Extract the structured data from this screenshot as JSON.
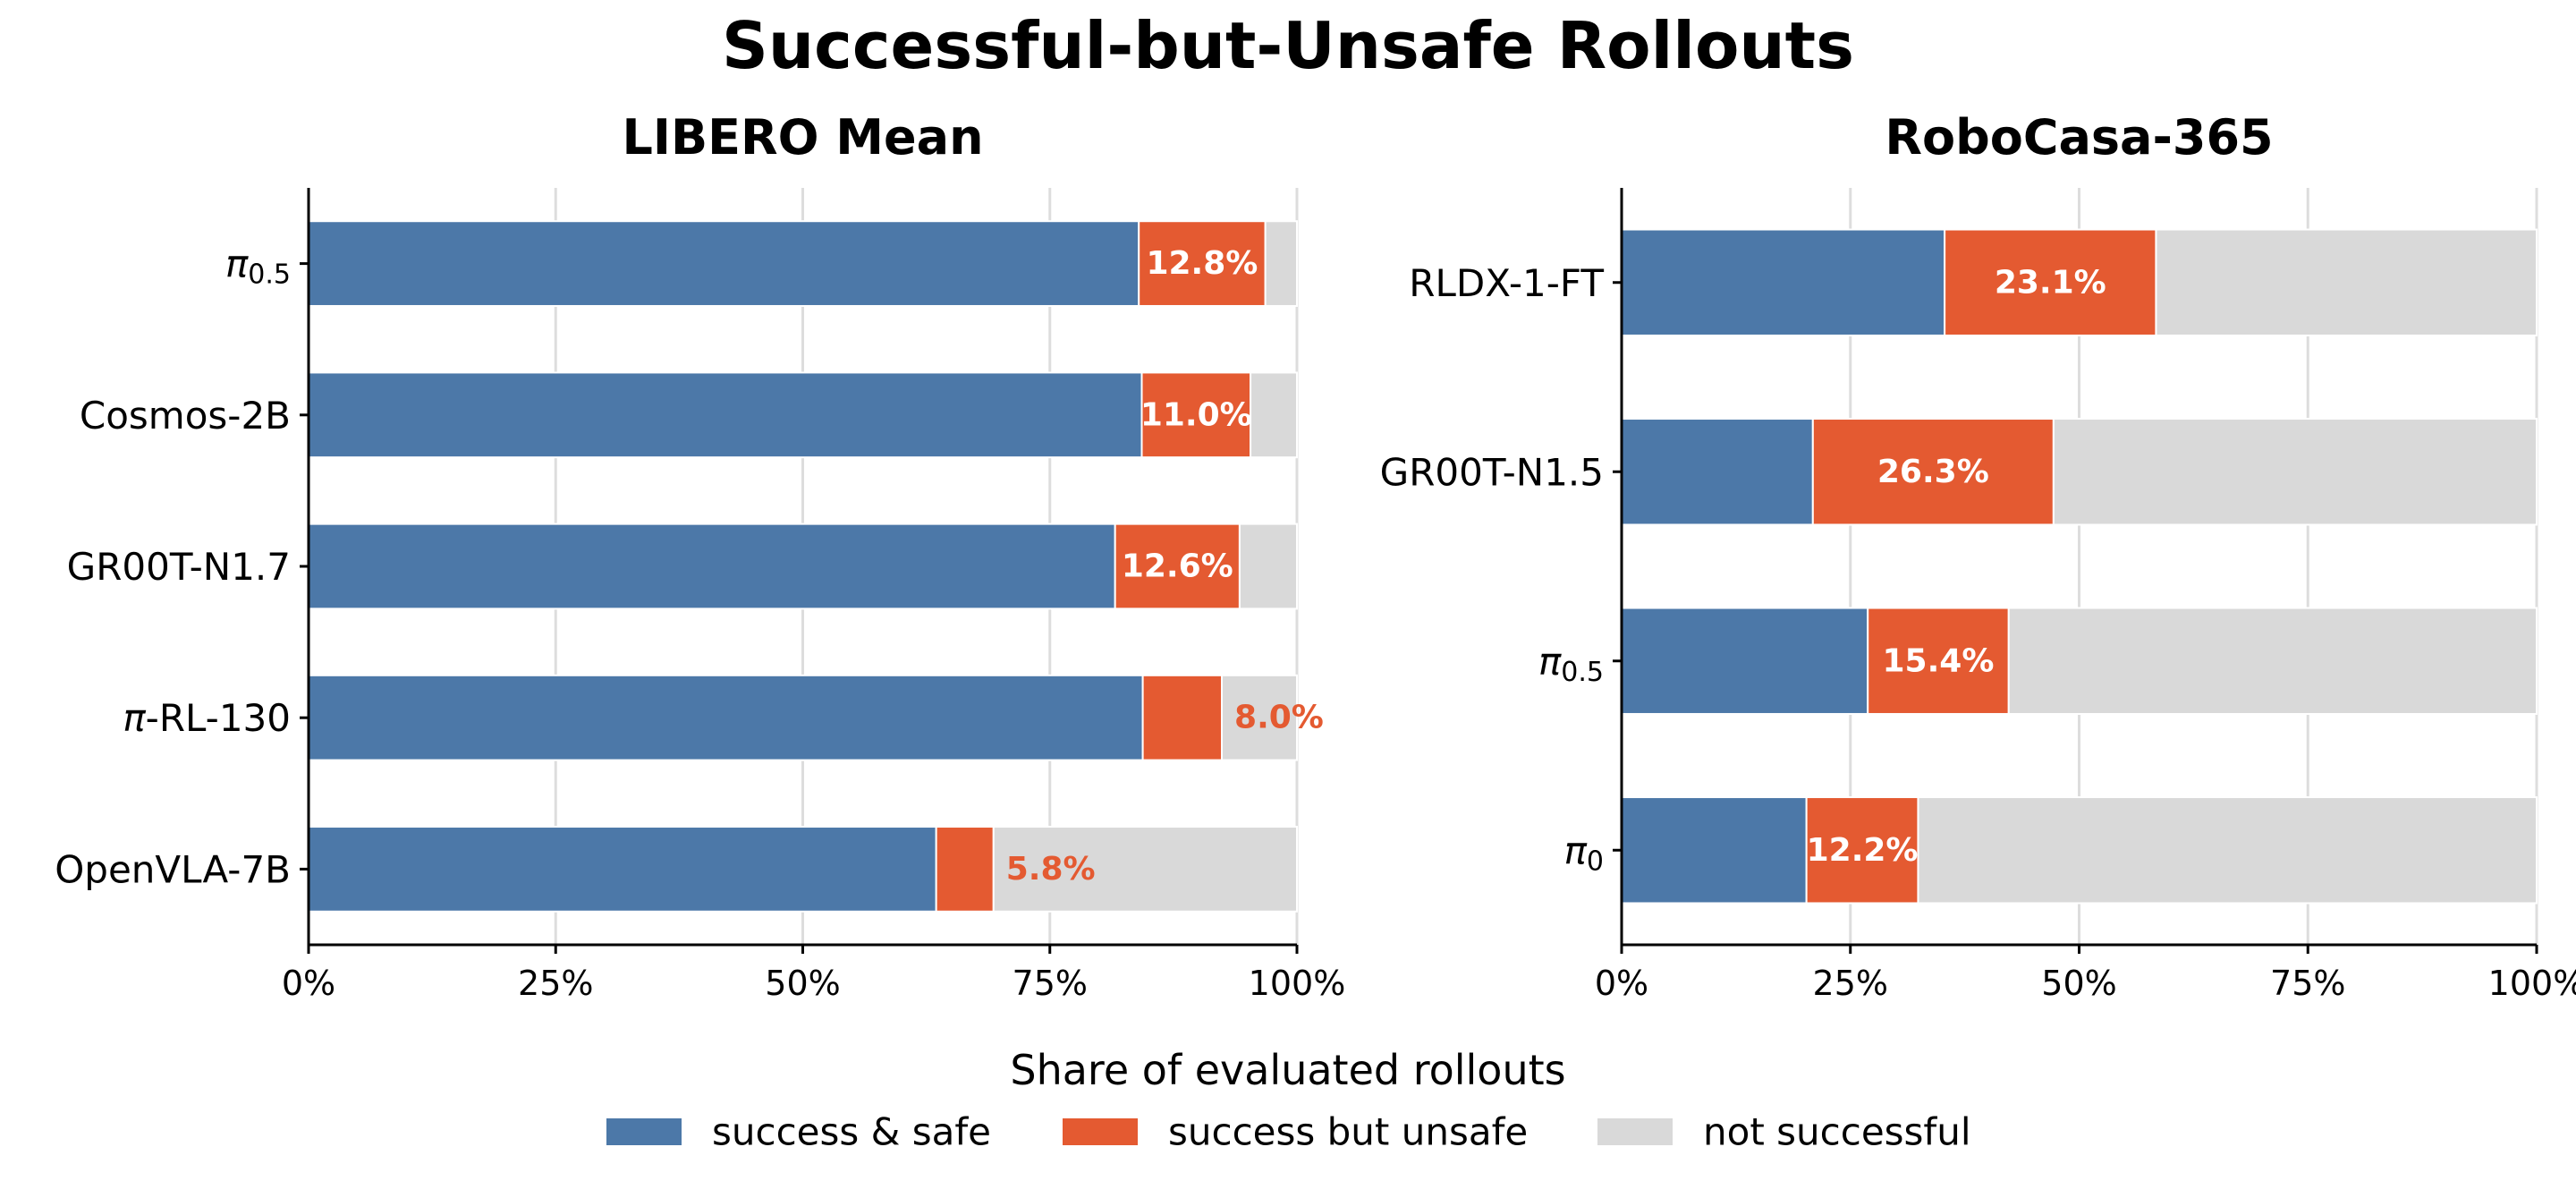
{
  "figure_title": "Successful-but-Unsafe Rollouts",
  "shared_xlabel": "Share of evaluated rollouts",
  "legend": [
    {
      "label": "success & safe",
      "color": "#4C78A8"
    },
    {
      "label": "success but unsafe",
      "color": "#E45A31"
    },
    {
      "label": "not successful",
      "color": "#D9D9D9"
    }
  ],
  "colors": {
    "safe": "#4C78A8",
    "unsafe": "#E45A31",
    "fail": "#D9D9D9",
    "label_white": "#FFFFFF",
    "label_outside": "#E45A31",
    "grid": "#DDDDDD"
  },
  "chart_data": [
    {
      "type": "bar",
      "orientation": "horizontal",
      "stacked": true,
      "title": "LIBERO Mean",
      "categories": [
        {
          "base": "π",
          "sub": "0.5"
        },
        {
          "base": "Cosmos-2B"
        },
        {
          "base": "GR00T-N1.7"
        },
        {
          "base": "π-RL-130"
        },
        {
          "base": "OpenVLA-7B"
        }
      ],
      "series": [
        {
          "name": "success & safe",
          "values": [
            84.0,
            84.3,
            81.6,
            84.4,
            63.5
          ]
        },
        {
          "name": "success but unsafe",
          "values": [
            12.8,
            11.0,
            12.6,
            8.0,
            5.8
          ]
        },
        {
          "name": "not successful",
          "values": [
            3.2,
            4.7,
            5.8,
            7.6,
            30.7
          ]
        }
      ],
      "data_labels": [
        "12.8%",
        "11.0%",
        "12.6%",
        "8.0%",
        "5.8%"
      ],
      "data_label_position": [
        "inside",
        "inside",
        "inside",
        "outside",
        "outside"
      ],
      "xlim": [
        0,
        100
      ],
      "xticks": [
        "0%",
        "25%",
        "50%",
        "75%",
        "100%"
      ],
      "grid": "x"
    },
    {
      "type": "bar",
      "orientation": "horizontal",
      "stacked": true,
      "title": "RoboCasa-365",
      "categories": [
        {
          "base": "RLDX-1-FT"
        },
        {
          "base": "GR00T-N1.5"
        },
        {
          "base": "π",
          "sub": "0.5"
        },
        {
          "base": "π",
          "sub": "0"
        }
      ],
      "series": [
        {
          "name": "success & safe",
          "values": [
            35.3,
            20.9,
            26.9,
            20.2
          ]
        },
        {
          "name": "success but unsafe",
          "values": [
            23.1,
            26.3,
            15.4,
            12.2
          ]
        },
        {
          "name": "not successful",
          "values": [
            41.6,
            52.8,
            57.7,
            67.6
          ]
        }
      ],
      "data_labels": [
        "23.1%",
        "26.3%",
        "15.4%",
        "12.2%"
      ],
      "data_label_position": [
        "inside",
        "inside",
        "inside",
        "inside"
      ],
      "xlim": [
        0,
        100
      ],
      "xticks": [
        "0%",
        "25%",
        "50%",
        "75%",
        "100%"
      ],
      "grid": "x"
    }
  ]
}
